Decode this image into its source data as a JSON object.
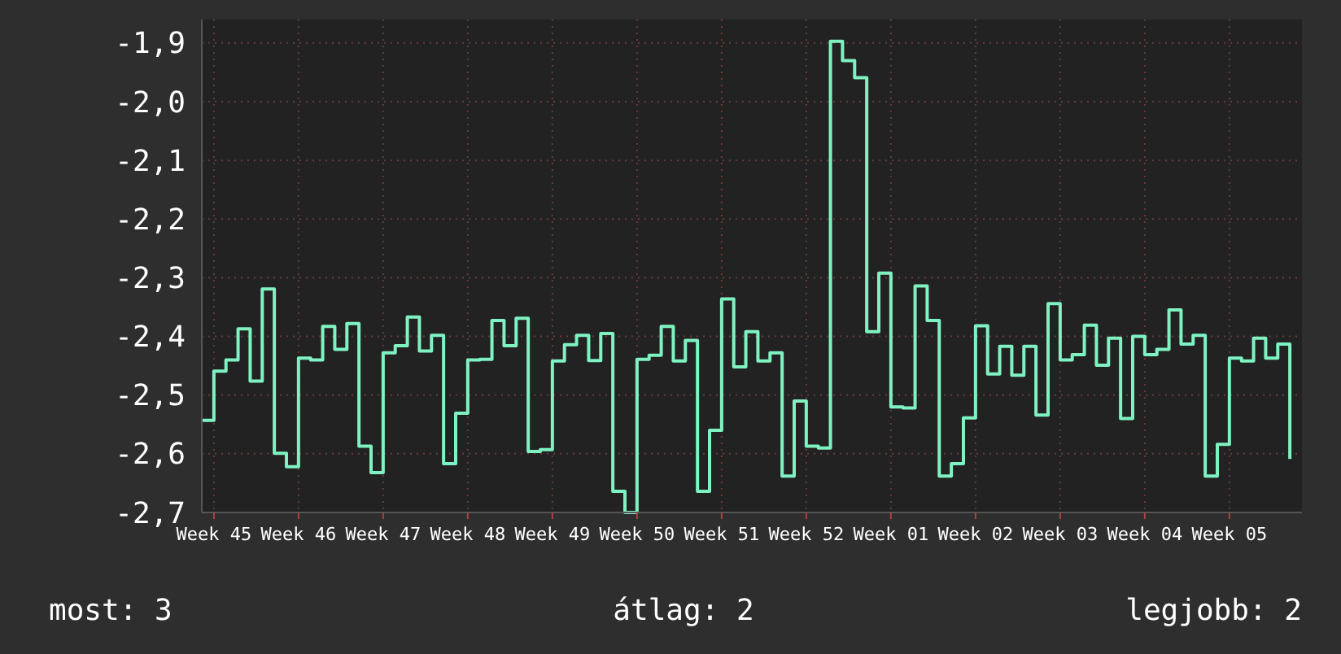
{
  "chart_data": {
    "type": "step",
    "color": "#7ff2c2",
    "grid": true,
    "categories": [
      null,
      "Week 45",
      null,
      null,
      null,
      null,
      null,
      null,
      "Week 46",
      null,
      null,
      null,
      null,
      null,
      null,
      "Week 47",
      null,
      null,
      null,
      null,
      null,
      null,
      "Week 48",
      null,
      null,
      null,
      null,
      null,
      null,
      "Week 49",
      null,
      null,
      null,
      null,
      null,
      null,
      "Week 50",
      null,
      null,
      null,
      null,
      null,
      null,
      "Week 51",
      null,
      null,
      null,
      null,
      null,
      null,
      "Week 52",
      null,
      null,
      null,
      null,
      null,
      null,
      "Week 01",
      null,
      null,
      null,
      null,
      null,
      null,
      "Week 02",
      null,
      null,
      null,
      null,
      null,
      null,
      "Week 03",
      null,
      null,
      null,
      null,
      null,
      null,
      "Week 04",
      null,
      null,
      null,
      null,
      null,
      null,
      "Week 05",
      null,
      null,
      null,
      null,
      null
    ],
    "values": [
      -2.543,
      -2.459,
      -2.44,
      -2.387,
      -2.476,
      -2.319,
      -2.599,
      -2.622,
      -2.437,
      -2.44,
      -2.383,
      -2.422,
      -2.378,
      -2.587,
      -2.632,
      -2.428,
      -2.416,
      -2.367,
      -2.425,
      -2.398,
      -2.617,
      -2.531,
      -2.44,
      -2.439,
      -2.373,
      -2.416,
      -2.369,
      -2.596,
      -2.593,
      -2.442,
      -2.414,
      -2.398,
      -2.441,
      -2.395,
      -2.664,
      -2.7,
      -2.439,
      -2.432,
      -2.383,
      -2.442,
      -2.407,
      -2.664,
      -2.56,
      -2.336,
      -2.452,
      -2.392,
      -2.442,
      -2.428,
      -2.638,
      -2.51,
      -2.587,
      -2.59,
      -1.897,
      -1.93,
      -1.959,
      -2.392,
      -2.292,
      -2.52,
      -2.522,
      -2.314,
      -2.373,
      -2.638,
      -2.617,
      -2.539,
      -2.382,
      -2.464,
      -2.417,
      -2.466,
      -2.417,
      -2.534,
      -2.344,
      -2.44,
      -2.431,
      -2.381,
      -2.449,
      -2.403,
      -2.54,
      -2.4,
      -2.431,
      -2.422,
      -2.355,
      -2.413,
      -2.398,
      -2.638,
      -2.584,
      -2.437,
      -2.442,
      -2.403,
      -2.437,
      -2.413,
      -2.609
    ],
    "ylim": [
      -2.7,
      -1.86
    ],
    "yticks": [
      {
        "value": -2.7,
        "label": "-2,7"
      },
      {
        "value": -2.6,
        "label": "-2,6"
      },
      {
        "value": -2.5,
        "label": "-2,5"
      },
      {
        "value": -2.4,
        "label": "-2,4"
      },
      {
        "value": -2.3,
        "label": "-2,3"
      },
      {
        "value": -2.2,
        "label": "-2,2"
      },
      {
        "value": -2.1,
        "label": "-2,1"
      },
      {
        "value": -2.0,
        "label": "-2,0"
      },
      {
        "value": -1.9,
        "label": "-1,9"
      }
    ],
    "annotations": [
      "most: 3",
      "átlag: 2",
      "legjobb: 2"
    ]
  }
}
